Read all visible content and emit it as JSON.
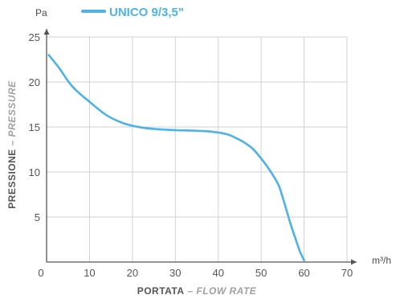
{
  "chart_data": {
    "type": "line",
    "title": "",
    "x_unit": "m³/h",
    "y_unit": "Pa",
    "xlabel": {
      "main": "PORTATA",
      "sep": " – ",
      "alt": "FLOW RATE"
    },
    "ylabel": {
      "main": "PRESSIONE",
      "sep": " – ",
      "alt": "PRESSURE"
    },
    "xlim": [
      0,
      70
    ],
    "ylim": [
      0,
      25
    ],
    "x_ticks": [
      "0",
      "10",
      "20",
      "30",
      "40",
      "50",
      "60",
      "70"
    ],
    "y_ticks": [
      "5",
      "10",
      "15",
      "20",
      "25"
    ],
    "grid": true,
    "legend_position": "top",
    "series": [
      {
        "name": "UNICO 9/3,5\"",
        "color": "#4db3e6",
        "x": [
          0.5,
          3,
          6,
          10,
          14,
          18,
          22,
          26,
          30,
          34,
          38,
          42,
          44,
          46,
          48,
          50,
          52,
          54,
          55,
          56,
          57,
          58,
          59,
          60
        ],
        "y": [
          23,
          21.5,
          19.5,
          17.8,
          16.3,
          15.4,
          14.95,
          14.75,
          14.65,
          14.6,
          14.5,
          14.2,
          13.8,
          13.3,
          12.6,
          11.5,
          10.2,
          8.6,
          7.2,
          5.6,
          4.0,
          2.6,
          1.2,
          0.2
        ]
      }
    ]
  }
}
